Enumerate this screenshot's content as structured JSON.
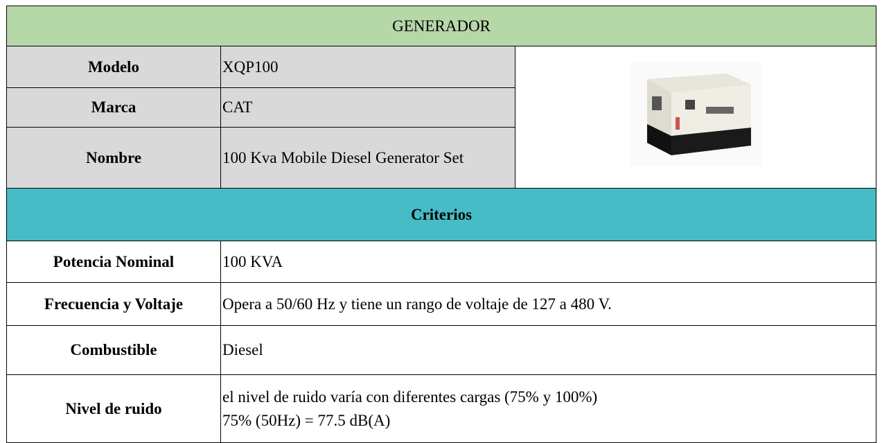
{
  "header": {
    "title": "GENERADOR"
  },
  "specs": [
    {
      "label": "Modelo",
      "value": "XQP100"
    },
    {
      "label": "Marca",
      "value": "CAT"
    },
    {
      "label": "Nombre",
      "value": "100 Kva Mobile Diesel Generator Set"
    }
  ],
  "criteria": {
    "title": "Criterios",
    "rows": [
      {
        "label": "Potencia Nominal",
        "value": [
          "100 KVA"
        ]
      },
      {
        "label": "Frecuencia y Voltaje",
        "value": [
          "Opera a 50/60 Hz y tiene un rango de voltaje de 127 a 480 V."
        ]
      },
      {
        "label": "Combustible",
        "value": [
          "Diesel"
        ]
      },
      {
        "label": "Nivel de ruido",
        "value": [
          "el nivel de ruido varía con diferentes cargas (75% y 100%)",
          "75% (50Hz) = 77.5 dB(A)"
        ]
      }
    ]
  }
}
